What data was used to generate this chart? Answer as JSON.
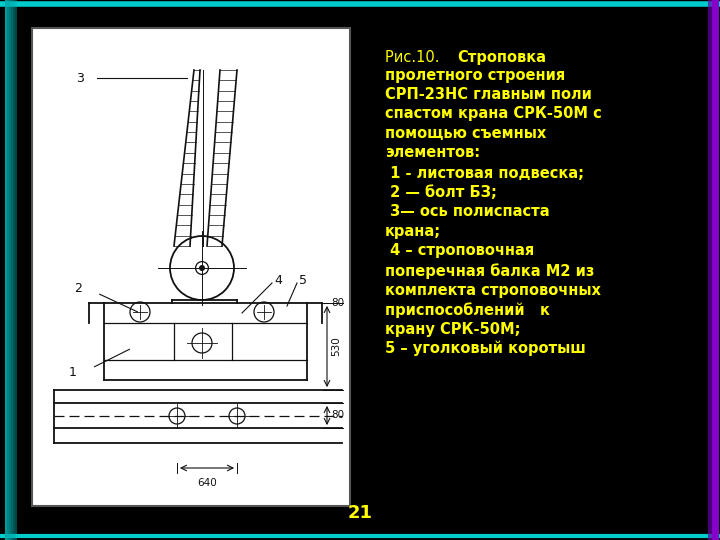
{
  "bg_color": "#000000",
  "text_color": "#ffff00",
  "diagram_bg": "#ffffff",
  "lc": "#111111",
  "title_part1": "Рис.10.  ",
  "title_part2": "Строповка пролетного строения СРП-23НС главным поли спастом крана СРК-50М с помощью съемных элементов:",
  "item1": " 1 - листовая подвеска;",
  "item2": " 2 — болт БЗ;",
  "item3": " 3— ось полиспаста крана;",
  "item4": " 4 – строповочная поперечная балка М2 из комплекта строповочных приспособлений   к крану СРК-50М;",
  "item5": "5 – уголковый коротыш",
  "page_num": "21"
}
